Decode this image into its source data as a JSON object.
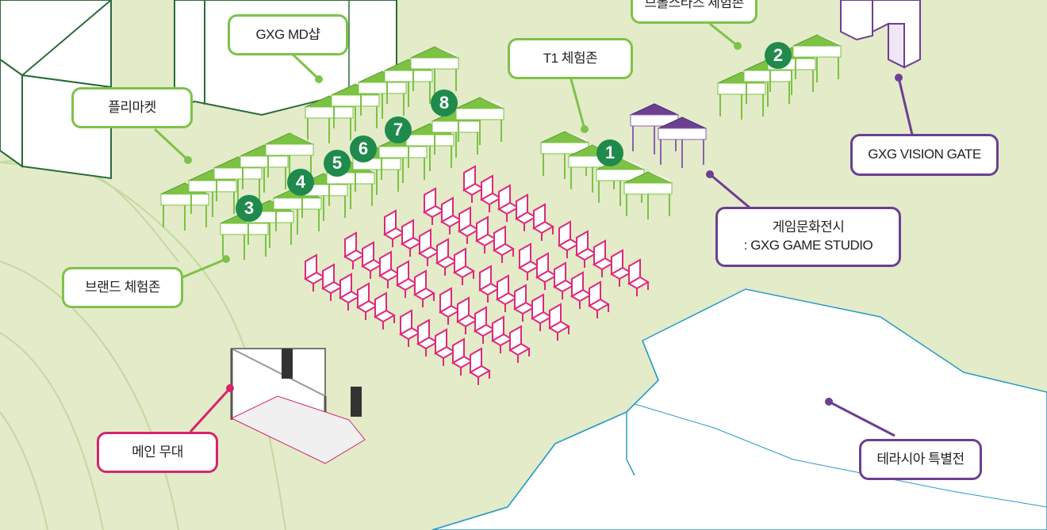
{
  "colors": {
    "ground": "#e3ebc9",
    "building": "#ffffff",
    "green_border": "#7ec24a",
    "purple_border": "#6b3f91",
    "pink_border": "#d6246e",
    "badge": "#1f8a4c",
    "chair": "#e0287a",
    "water_outline": "#2a9ac7"
  },
  "labels": {
    "gxg_md_shop": "GXG MD샵",
    "brawl_stars_zone": "브롤스타즈 체험존",
    "t1_zone": "T1 체험존",
    "flea_market": "플리마켓",
    "gxg_vision_gate": "GXG VISION GATE",
    "game_culture_exhibit": "게임문화전시\n: GXG GAME STUDIO",
    "brand_zone": "브랜드 체험존",
    "main_stage": "메인 무대",
    "terrasia_exhibit": "테라시아 특별전"
  },
  "badges": [
    "1",
    "2",
    "3",
    "4",
    "5",
    "6",
    "7",
    "8"
  ]
}
